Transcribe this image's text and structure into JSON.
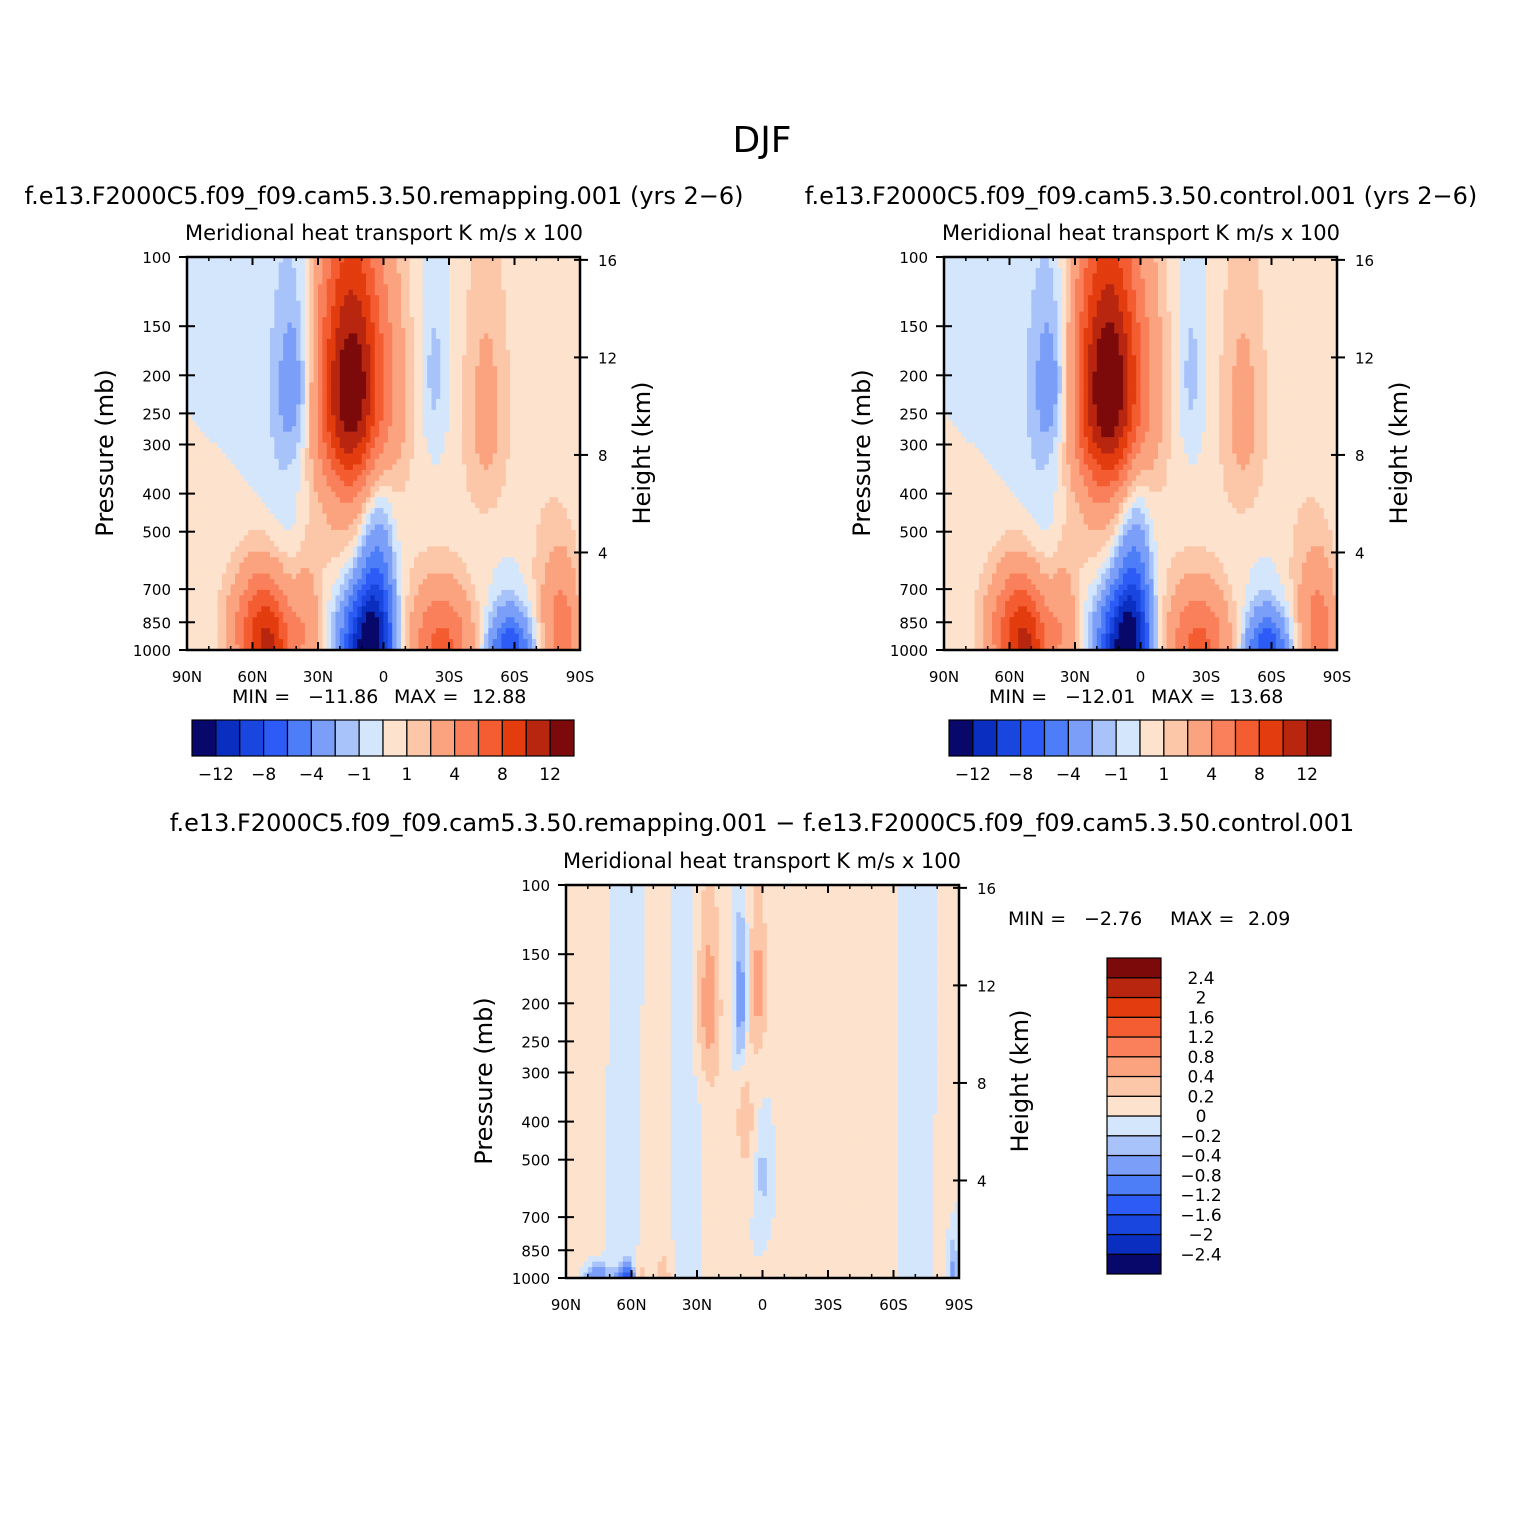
{
  "title": "DJF",
  "chart_data": [
    {
      "type": "heatmap",
      "panel_id": "remapping",
      "case_title": "f.e13.F2000C5.f09_f09.cam5.3.50.remapping.001 (yrs 2−6)",
      "variable": "Meridional heat transport",
      "units": "K m/s x 100",
      "ylabel": "Pressure (mb)",
      "ylabel_right": "Height (km)",
      "x_ticks": [
        "90N",
        "60N",
        "30N",
        "0",
        "30S",
        "60S",
        "90S"
      ],
      "y_ticks": [
        "100",
        "150",
        "200",
        "250",
        "300",
        "400",
        "500",
        "700",
        "850",
        "1000"
      ],
      "y_ticks_right": [
        "16",
        "12",
        "8",
        "4"
      ],
      "x_range": [
        90,
        -90
      ],
      "y_range": [
        100,
        1000
      ],
      "min_label": "MIN =",
      "min_value": "−11.86",
      "max_label": "MAX =",
      "max_value": "12.88",
      "colorbar": {
        "orientation": "horizontal",
        "colors": [
          "#08086b",
          "#0a2ec0",
          "#1a46e0",
          "#2c5cf5",
          "#4d7df7",
          "#7b9ff8",
          "#a8c3fa",
          "#d4e6fc",
          "#fde3cd",
          "#fcc6a8",
          "#fba27e",
          "#f9805a",
          "#f45c31",
          "#e23c0f",
          "#b82610",
          "#7d0a0a"
        ],
        "labels": [
          "−12",
          "−8",
          "−4",
          "−1",
          "1",
          "4",
          "8",
          "12"
        ]
      },
      "features": [
        {
          "lat": 52,
          "p": 1000,
          "v": 8,
          "sx": 8,
          "sy": 250
        },
        {
          "lat": 60,
          "p": 860,
          "v": 4,
          "sx": 10,
          "sy": 200
        },
        {
          "lat": 35,
          "p": 860,
          "v": 3,
          "sx": 5,
          "sy": 260
        },
        {
          "lat": 8,
          "p": 980,
          "v": -12,
          "sx": 8,
          "sy": 220
        },
        {
          "lat": 2,
          "p": 760,
          "v": -4,
          "sx": 5,
          "sy": 300
        },
        {
          "lat": 5,
          "p": 600,
          "v": -1.5,
          "sx": 6,
          "sy": 350
        },
        {
          "lat": 14,
          "p": 210,
          "v": 12,
          "sx": 12,
          "sy": 110
        },
        {
          "lat": 14,
          "p": 380,
          "v": 3,
          "sx": 14,
          "sy": 220
        },
        {
          "lat": 40,
          "p": 210,
          "v": -3,
          "sx": 6,
          "sy": 70
        },
        {
          "lat": 42,
          "p": 380,
          "v": -1.5,
          "sx": 12,
          "sy": 260
        },
        {
          "lat": -27,
          "p": 1000,
          "v": 5,
          "sx": 10,
          "sy": 200
        },
        {
          "lat": -25,
          "p": 860,
          "v": 2,
          "sx": 12,
          "sy": 200
        },
        {
          "lat": -47,
          "p": 250,
          "v": 2.5,
          "sx": 8,
          "sy": 140
        },
        {
          "lat": -23,
          "p": 200,
          "v": -1.5,
          "sx": 4,
          "sy": 70
        },
        {
          "lat": -58,
          "p": 1000,
          "v": -8,
          "sx": 7,
          "sy": 150
        },
        {
          "lat": -82,
          "p": 900,
          "v": 5,
          "sx": 6,
          "sy": 250
        },
        {
          "lat": -72,
          "p": 700,
          "v": 1,
          "sx": 6,
          "sy": 320
        }
      ]
    },
    {
      "type": "heatmap",
      "panel_id": "control",
      "case_title": "f.e13.F2000C5.f09_f09.cam5.3.50.control.001 (yrs 2−6)",
      "variable": "Meridional heat transport",
      "units": "K m/s x 100",
      "ylabel": "Pressure (mb)",
      "ylabel_right": "Height (km)",
      "x_ticks": [
        "90N",
        "60N",
        "30N",
        "0",
        "30S",
        "60S",
        "90S"
      ],
      "y_ticks": [
        "100",
        "150",
        "200",
        "250",
        "300",
        "400",
        "500",
        "700",
        "850",
        "1000"
      ],
      "y_ticks_right": [
        "16",
        "12",
        "8",
        "4"
      ],
      "x_range": [
        90,
        -90
      ],
      "y_range": [
        100,
        1000
      ],
      "min_label": "MIN =",
      "min_value": "−12.01",
      "max_label": "MAX =",
      "max_value": "13.68",
      "colorbar": {
        "orientation": "horizontal",
        "colors": [
          "#08086b",
          "#0a2ec0",
          "#1a46e0",
          "#2c5cf5",
          "#4d7df7",
          "#7b9ff8",
          "#a8c3fa",
          "#d4e6fc",
          "#fde3cd",
          "#fcc6a8",
          "#fba27e",
          "#f9805a",
          "#f45c31",
          "#e23c0f",
          "#b82610",
          "#7d0a0a"
        ],
        "labels": [
          "−12",
          "−8",
          "−4",
          "−1",
          "1",
          "4",
          "8",
          "12"
        ]
      },
      "features": [
        {
          "lat": 52,
          "p": 1000,
          "v": 8,
          "sx": 8,
          "sy": 250
        },
        {
          "lat": 60,
          "p": 860,
          "v": 4,
          "sx": 10,
          "sy": 200
        },
        {
          "lat": 35,
          "p": 860,
          "v": 3,
          "sx": 5,
          "sy": 260
        },
        {
          "lat": 8,
          "p": 980,
          "v": -12,
          "sx": 8,
          "sy": 220
        },
        {
          "lat": 2,
          "p": 760,
          "v": -4,
          "sx": 5,
          "sy": 300
        },
        {
          "lat": 5,
          "p": 600,
          "v": -1.5,
          "sx": 6,
          "sy": 350
        },
        {
          "lat": 14,
          "p": 210,
          "v": 12.5,
          "sx": 12,
          "sy": 110
        },
        {
          "lat": 14,
          "p": 380,
          "v": 3,
          "sx": 14,
          "sy": 220
        },
        {
          "lat": 40,
          "p": 210,
          "v": -3,
          "sx": 6,
          "sy": 70
        },
        {
          "lat": 42,
          "p": 380,
          "v": -1.5,
          "sx": 12,
          "sy": 260
        },
        {
          "lat": -27,
          "p": 1000,
          "v": 5,
          "sx": 10,
          "sy": 200
        },
        {
          "lat": -25,
          "p": 860,
          "v": 2,
          "sx": 12,
          "sy": 200
        },
        {
          "lat": -47,
          "p": 250,
          "v": 2.5,
          "sx": 8,
          "sy": 140
        },
        {
          "lat": -23,
          "p": 200,
          "v": -1.5,
          "sx": 4,
          "sy": 70
        },
        {
          "lat": -58,
          "p": 1000,
          "v": -8,
          "sx": 7,
          "sy": 150
        },
        {
          "lat": -82,
          "p": 900,
          "v": 5,
          "sx": 6,
          "sy": 250
        },
        {
          "lat": -72,
          "p": 700,
          "v": 1,
          "sx": 6,
          "sy": 320
        }
      ]
    },
    {
      "type": "heatmap",
      "panel_id": "difference",
      "case_title": "f.e13.F2000C5.f09_f09.cam5.3.50.remapping.001 − f.e13.F2000C5.f09_f09.cam5.3.50.control.001",
      "variable": "Meridional heat transport",
      "units": "K m/s x 100",
      "ylabel": "Pressure (mb)",
      "ylabel_right": "Height (km)",
      "x_ticks": [
        "90N",
        "60N",
        "30N",
        "0",
        "30S",
        "60S",
        "90S"
      ],
      "y_ticks": [
        "100",
        "150",
        "200",
        "250",
        "300",
        "400",
        "500",
        "700",
        "850",
        "1000"
      ],
      "y_ticks_right": [
        "16",
        "12",
        "8",
        "4"
      ],
      "x_range": [
        90,
        -90
      ],
      "y_range": [
        100,
        1000
      ],
      "min_label": "MIN =",
      "min_value": "−2.76",
      "max_label": "MAX =",
      "max_value": "2.09",
      "colorbar": {
        "orientation": "vertical",
        "colors": [
          "#08086b",
          "#0a2ec0",
          "#1a46e0",
          "#2c5cf5",
          "#4d7df7",
          "#7b9ff8",
          "#a8c3fa",
          "#d4e6fc",
          "#fde3cd",
          "#fcc6a8",
          "#fba27e",
          "#f9805a",
          "#f45c31",
          "#e23c0f",
          "#b82610",
          "#7d0a0a"
        ],
        "labels": [
          "2.4",
          "2",
          "1.6",
          "1.2",
          "0.8",
          "0.4",
          "0.2",
          "0",
          "−0.2",
          "−0.4",
          "−0.8",
          "−1.2",
          "−1.6",
          "−2",
          "−2.4"
        ]
      },
      "features": [
        {
          "lat": 80,
          "p": 500,
          "v": 0.15,
          "sx": 5,
          "sy": 700
        },
        {
          "lat": 62,
          "p": 600,
          "v": -0.1,
          "sx": 6,
          "sy": 600
        },
        {
          "lat": 48,
          "p": 600,
          "v": 0.15,
          "sx": 5,
          "sy": 500
        },
        {
          "lat": 35,
          "p": 500,
          "v": -0.1,
          "sx": 6,
          "sy": 600
        },
        {
          "lat": 22,
          "p": 700,
          "v": 0.15,
          "sx": 4,
          "sy": 350
        },
        {
          "lat": 25,
          "p": 200,
          "v": 0.5,
          "sx": 4,
          "sy": 80
        },
        {
          "lat": 10,
          "p": 200,
          "v": -0.6,
          "sx": 2,
          "sy": 60
        },
        {
          "lat": 2,
          "p": 180,
          "v": 0.5,
          "sx": 3,
          "sy": 60
        },
        {
          "lat": 8,
          "p": 400,
          "v": 0.35,
          "sx": 3,
          "sy": 100
        },
        {
          "lat": 0,
          "p": 550,
          "v": -0.3,
          "sx": 2,
          "sy": 80
        },
        {
          "lat": -25,
          "p": 450,
          "v": 0.15,
          "sx": 7,
          "sy": 500
        },
        {
          "lat": -55,
          "p": 550,
          "v": 0.12,
          "sx": 5,
          "sy": 600
        },
        {
          "lat": -70,
          "p": 400,
          "v": -0.1,
          "sx": 6,
          "sy": 600
        },
        {
          "lat": -84,
          "p": 650,
          "v": 0.15,
          "sx": 3,
          "sy": 500
        },
        {
          "lat": -87,
          "p": 950,
          "v": -0.5,
          "sx": 2,
          "sy": 150
        },
        {
          "lat": 76,
          "p": 1000,
          "v": -0.8,
          "sx": 4,
          "sy": 60
        },
        {
          "lat": 62,
          "p": 1000,
          "v": -1.5,
          "sx": 3,
          "sy": 50
        },
        {
          "lat": 57,
          "p": 990,
          "v": 0.5,
          "sx": 2,
          "sy": 70
        },
        {
          "lat": 45,
          "p": 1000,
          "v": 0.3,
          "sx": 2,
          "sy": 80
        }
      ]
    }
  ]
}
